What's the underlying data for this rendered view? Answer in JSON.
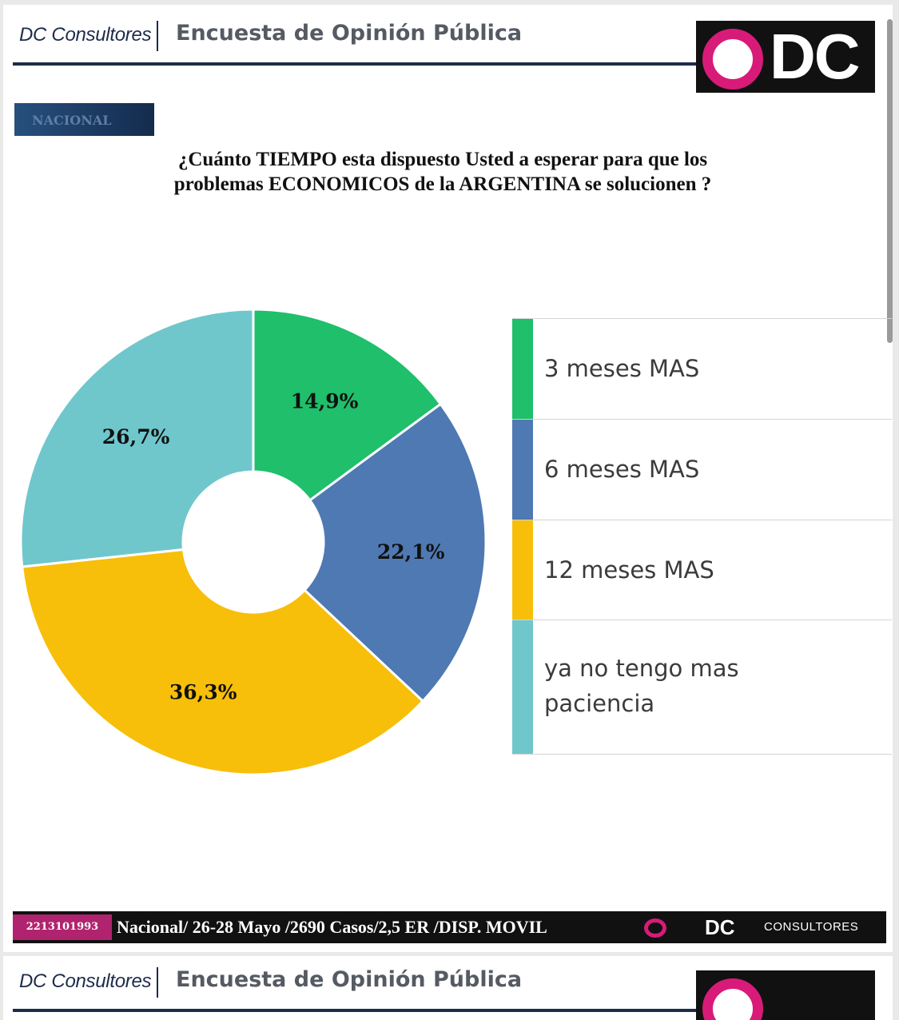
{
  "header": {
    "brand": "DC Consultores",
    "survey_title": "Encuesta de Opinión Pública",
    "logo_text": "DC"
  },
  "tag": "NACIONAL",
  "question": "¿Cuánto TIEMPO esta dispuesto Usted a esperar para que los problemas ECONOMICOS de la ARGENTINA se solucionen ?",
  "footer": {
    "phone": "2213101993",
    "info": "Nacional/ 26-28 Mayo /2690 Casos/2,5 ER /DISP. MOVIL",
    "logo_dc": "DC",
    "logo_consultores": "CONSULTORES"
  },
  "chart_data": {
    "type": "pie",
    "donut": true,
    "legend_position": "right",
    "categories": [
      "3 meses MAS",
      "6 meses MAS",
      "12 meses MAS",
      "ya no tengo mas paciencia"
    ],
    "values": [
      14.9,
      22.1,
      36.3,
      26.7
    ],
    "labels": [
      "14,9%",
      "22,1%",
      "36,3%",
      "26,7%"
    ],
    "colors": [
      "#1fbf6b",
      "#4e79b2",
      "#f7bf0a",
      "#6fc7cc"
    ]
  },
  "next_slide": {
    "brand": "DC Consultores",
    "survey_title": "Encuesta de Opinión Pública"
  }
}
